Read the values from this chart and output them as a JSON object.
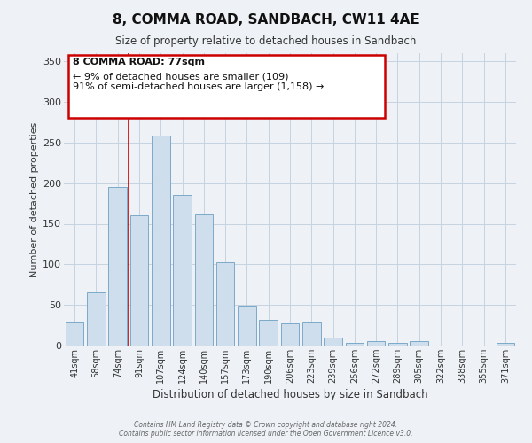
{
  "title": "8, COMMA ROAD, SANDBACH, CW11 4AE",
  "subtitle": "Size of property relative to detached houses in Sandbach",
  "xlabel": "Distribution of detached houses by size in Sandbach",
  "ylabel": "Number of detached properties",
  "bar_labels": [
    "41sqm",
    "58sqm",
    "74sqm",
    "91sqm",
    "107sqm",
    "124sqm",
    "140sqm",
    "157sqm",
    "173sqm",
    "190sqm",
    "206sqm",
    "223sqm",
    "239sqm",
    "256sqm",
    "272sqm",
    "289sqm",
    "305sqm",
    "322sqm",
    "338sqm",
    "355sqm",
    "371sqm"
  ],
  "bar_heights": [
    30,
    65,
    195,
    160,
    258,
    185,
    161,
    103,
    49,
    32,
    27,
    30,
    10,
    3,
    5,
    3,
    6,
    0,
    0,
    0,
    3
  ],
  "bar_color": "#cfdeed",
  "bar_edge_color": "#7aaac8",
  "vline_color": "#cc0000",
  "ylim": [
    0,
    360
  ],
  "yticks": [
    0,
    50,
    100,
    150,
    200,
    250,
    300,
    350
  ],
  "annotation_title": "8 COMMA ROAD: 77sqm",
  "annotation_line1": "← 9% of detached houses are smaller (109)",
  "annotation_line2": "91% of semi-detached houses are larger (1,158) →",
  "annotation_box_color": "#ffffff",
  "annotation_box_edge": "#cc0000",
  "footer1": "Contains HM Land Registry data © Crown copyright and database right 2024.",
  "footer2": "Contains public sector information licensed under the Open Government Licence v3.0.",
  "bg_color": "#eef2f7",
  "plot_bg_color": "#eef2f7",
  "grid_color": "#c5d3e0"
}
